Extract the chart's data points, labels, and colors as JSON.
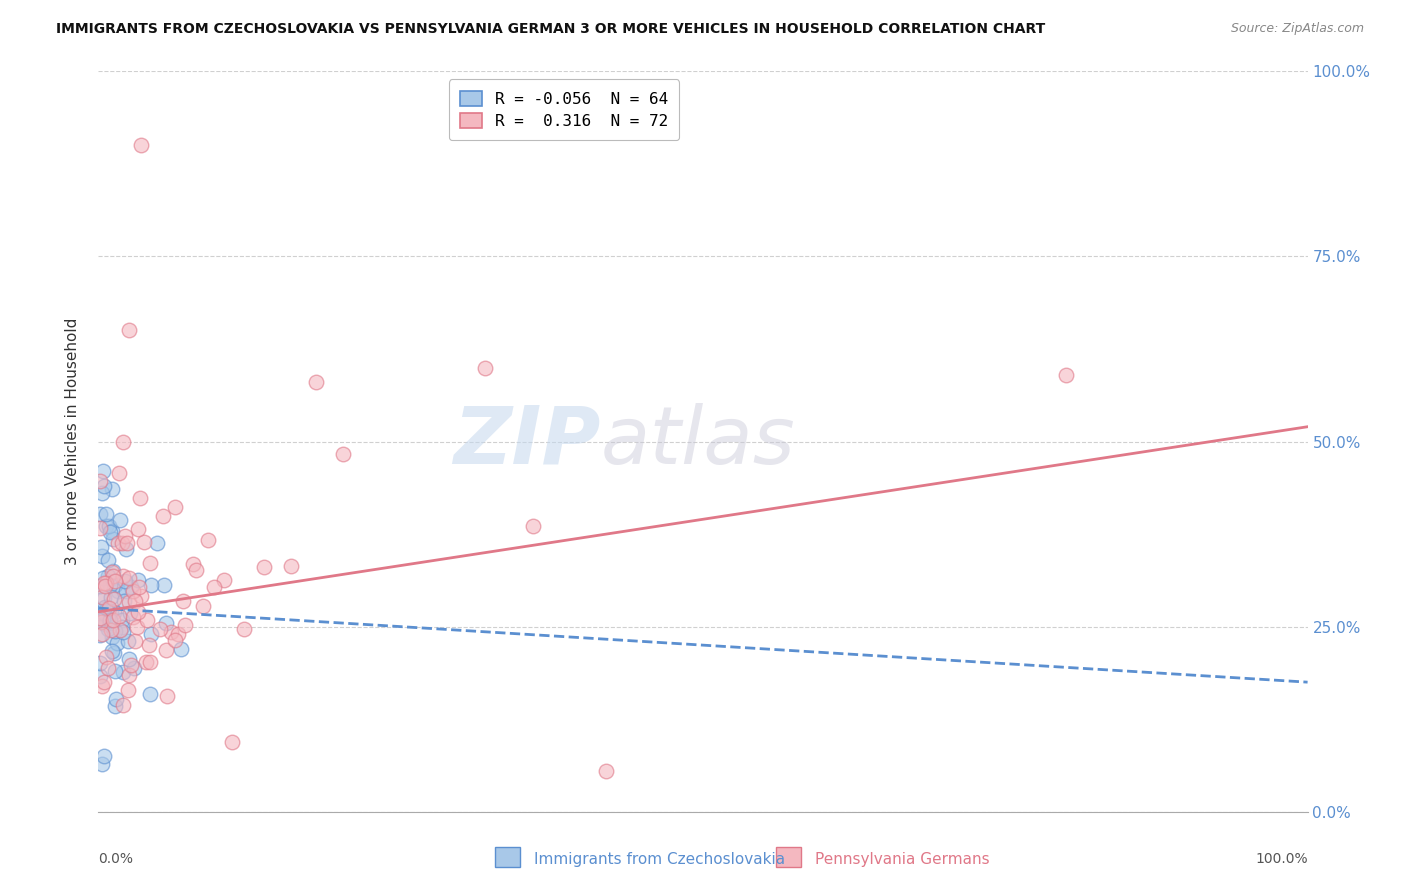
{
  "title": "IMMIGRANTS FROM CZECHOSLOVAKIA VS PENNSYLVANIA GERMAN 3 OR MORE VEHICLES IN HOUSEHOLD CORRELATION CHART",
  "source": "Source: ZipAtlas.com",
  "ylabel": "3 or more Vehicles in Household",
  "yticks": [
    "0.0%",
    "25.0%",
    "50.0%",
    "75.0%",
    "100.0%"
  ],
  "ytick_vals": [
    0.0,
    0.25,
    0.5,
    0.75,
    1.0
  ],
  "xtick_left": "0.0%",
  "xtick_right": "100.0%",
  "legend_label1": "Immigrants from Czechoslovakia",
  "legend_label2": "Pennsylvania Germans",
  "color_blue_fill": "#a8c8e8",
  "color_blue_edge": "#5b8fd0",
  "color_pink_fill": "#f4b8c0",
  "color_pink_edge": "#e07888",
  "color_trendline_blue": "#5b8fd0",
  "color_trendline_pink": "#e07888",
  "color_ytick": "#5b8fd0",
  "watermark_zip": "ZIP",
  "watermark_atlas": "atlas",
  "blue_R": -0.056,
  "blue_N": 64,
  "pink_R": 0.316,
  "pink_N": 72,
  "pink_trendline": [
    [
      0.0,
      0.27
    ],
    [
      1.0,
      0.52
    ]
  ],
  "blue_trendline": [
    [
      0.0,
      0.275
    ],
    [
      1.0,
      0.175
    ]
  ],
  "legend_entry1": "R = -0.056  N = 64",
  "legend_entry2": "R =  0.316  N = 72"
}
